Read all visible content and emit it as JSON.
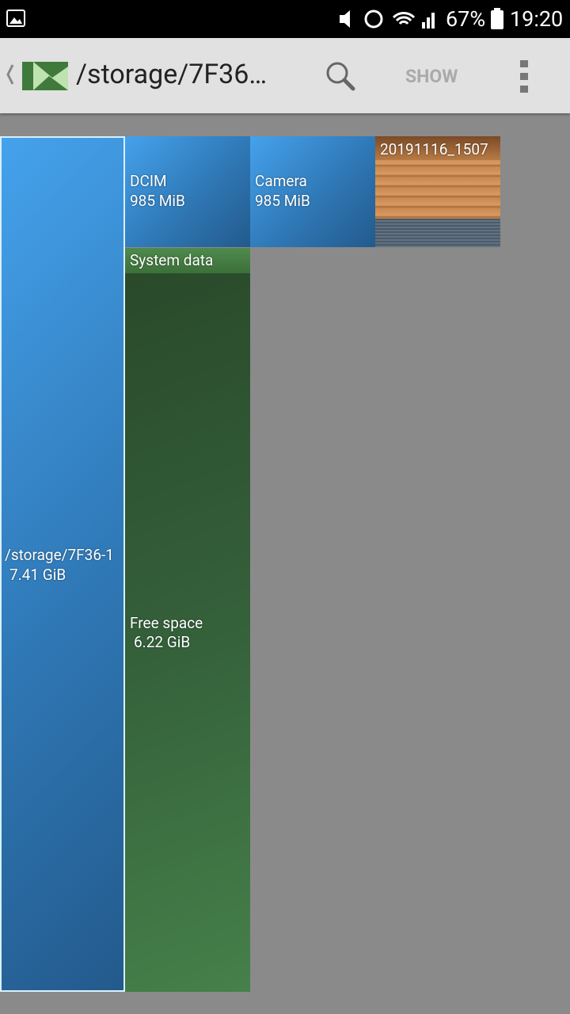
{
  "status_bar": {
    "battery": "67%",
    "time": "19:20"
  },
  "toolbar": {
    "title": "/storage/7F36…",
    "action": "SHOW"
  },
  "treemap": {
    "root": {
      "name": "/storage/7F36-1",
      "size": "7.41 GiB"
    },
    "folders": [
      {
        "name": "DCIM",
        "size": "985 MiB"
      },
      {
        "name": "Camera",
        "size": "985 MiB"
      },
      {
        "name": "20191116_1507"
      }
    ],
    "system": {
      "name": "System data"
    },
    "free": {
      "name": "Free space",
      "size": "6.22 GiB"
    }
  }
}
